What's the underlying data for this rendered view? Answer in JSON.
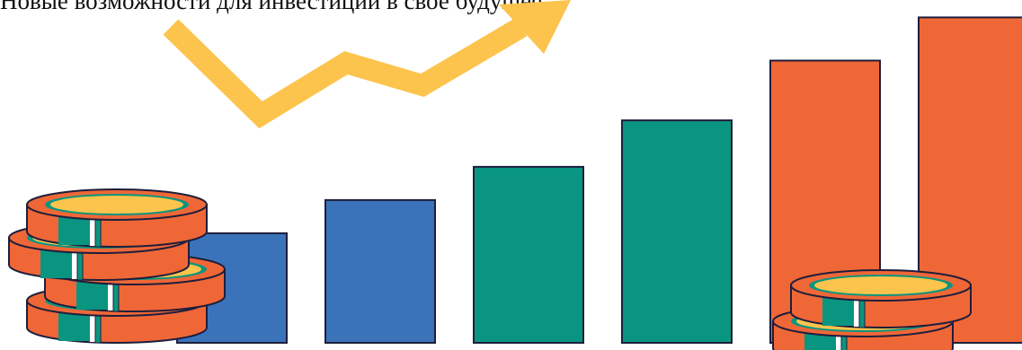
{
  "banner": {
    "headline": "Новые возможности для инвестиций в свое будущее"
  },
  "illustration": {
    "bar_count": 6,
    "bar_levels": [
      0.33,
      0.43,
      0.53,
      0.67,
      0.85,
      0.98
    ],
    "bar_colors": [
      "#3a73b9",
      "#3a73b9",
      "#0a9580",
      "#0a9580",
      "#ef6737",
      "#ef6737"
    ],
    "trend_arrow_color": "#fcc44d",
    "coin_colors": {
      "edge": "#ef6737",
      "face": "#fcc44d",
      "ring": "#0a9580",
      "band": "#0a9580",
      "outline": "#1e1e3c"
    },
    "icons": [
      "trend-arrow-icon",
      "coin-stack-icon"
    ]
  }
}
